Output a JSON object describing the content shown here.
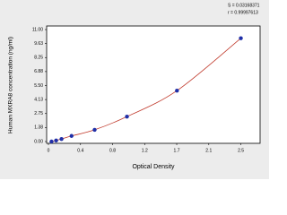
{
  "chart_data": {
    "type": "line",
    "x_label": "Optical Density",
    "y_label": "Human MXRA8 concentration (ng/ml)",
    "annotations": [
      "S = 0.03168371",
      "r = 0.99997613"
    ],
    "x": [
      0.04,
      0.1,
      0.17,
      0.3,
      0.6,
      1.02,
      1.67,
      2.5
    ],
    "series": [
      {
        "color": "#1f2fa8",
        "line_color": "#c0392b",
        "values": [
          0,
          0.1,
          0.25,
          0.55,
          1.15,
          2.45,
          5,
          10.15
        ]
      }
    ],
    "xlim": [
      0,
      2.75
    ],
    "xticks": [
      0,
      {
        "value": 0.4167,
        "label": "0.4"
      },
      {
        "value": 0.8333,
        "label": "0.8"
      },
      {
        "value": 1.25,
        "label": "1.2"
      },
      {
        "value": 1.6667,
        "label": "1.7"
      },
      {
        "value": 2.0833,
        "label": "2.1"
      },
      2.5
    ],
    "ylim": [
      0,
      11
    ],
    "yticks": [
      {
        "value": 0,
        "label": "0.00"
      },
      {
        "value": 1.375,
        "label": "1.38"
      },
      {
        "value": 2.75,
        "label": "2.75"
      },
      {
        "value": 4.125,
        "label": "4.13"
      },
      {
        "value": 5.5,
        "label": "5.50"
      },
      {
        "value": 6.875,
        "label": "6.88"
      },
      {
        "value": 8.25,
        "label": "8.25"
      },
      {
        "value": 9.625,
        "label": "9.63"
      },
      {
        "value": 11,
        "label": "11.00"
      }
    ]
  }
}
